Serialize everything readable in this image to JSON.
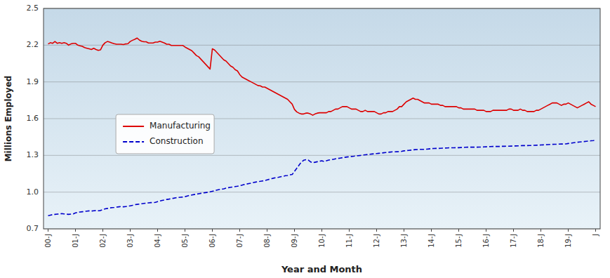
{
  "chart_data": {
    "type": "line",
    "xlabel": "Year and Month",
    "ylabel": "Millions Employed",
    "ylim": [
      0.7,
      2.5
    ],
    "yticks": [
      0.7,
      {
        "value": 1.0,
        "label": "1.0"
      },
      1.3,
      1.6,
      1.9,
      2.2,
      2.5
    ],
    "grid": true,
    "legend": "left",
    "categories": [
      "00-J",
      null,
      null,
      null,
      null,
      null,
      null,
      null,
      null,
      null,
      null,
      null,
      "01-J",
      null,
      null,
      null,
      null,
      null,
      null,
      null,
      null,
      null,
      null,
      null,
      "02-J",
      null,
      null,
      null,
      null,
      null,
      null,
      null,
      null,
      null,
      null,
      null,
      "03-J",
      null,
      null,
      null,
      null,
      null,
      null,
      null,
      null,
      null,
      null,
      null,
      "04-J",
      null,
      null,
      null,
      null,
      null,
      null,
      null,
      null,
      null,
      null,
      null,
      "05-J",
      null,
      null,
      null,
      null,
      null,
      null,
      null,
      null,
      null,
      null,
      null,
      "06-J",
      null,
      null,
      null,
      null,
      null,
      null,
      null,
      null,
      null,
      null,
      null,
      "07-J",
      null,
      null,
      null,
      null,
      null,
      null,
      null,
      null,
      null,
      null,
      null,
      "08-J",
      null,
      null,
      null,
      null,
      null,
      null,
      null,
      null,
      null,
      null,
      null,
      "09-J",
      null,
      null,
      null,
      null,
      null,
      null,
      null,
      null,
      null,
      null,
      null,
      "10-J",
      null,
      null,
      null,
      null,
      null,
      null,
      null,
      null,
      null,
      null,
      null,
      "11-J",
      null,
      null,
      null,
      null,
      null,
      null,
      null,
      null,
      null,
      null,
      null,
      "12-J",
      null,
      null,
      null,
      null,
      null,
      null,
      null,
      null,
      null,
      null,
      null,
      "13-J",
      null,
      null,
      null,
      null,
      null,
      null,
      null,
      null,
      null,
      null,
      null,
      "14-J",
      null,
      null,
      null,
      null,
      null,
      null,
      null,
      null,
      null,
      null,
      null,
      "15-J",
      null,
      null,
      null,
      null,
      null,
      null,
      null,
      null,
      null,
      null,
      null,
      "16-J",
      null,
      null,
      null,
      null,
      null,
      null,
      null,
      null,
      null,
      null,
      null,
      "17-J",
      null,
      null,
      null,
      null,
      null,
      null,
      null,
      null,
      null,
      null,
      null,
      "18-J",
      null,
      null,
      null,
      null,
      null,
      null,
      null,
      null,
      null,
      null,
      null,
      "19-J",
      null,
      null,
      null,
      null,
      null,
      null,
      null,
      null,
      null,
      null,
      null,
      "J"
    ],
    "series": [
      {
        "name": "Manufacturing",
        "color": "#dd0000",
        "line_style": "solid",
        "values": [
          2.21,
          2.22,
          2.215,
          2.23,
          2.215,
          2.22,
          2.215,
          2.22,
          2.215,
          2.2,
          2.21,
          2.215,
          2.215,
          2.2,
          2.195,
          2.19,
          2.18,
          2.175,
          2.17,
          2.165,
          2.175,
          2.165,
          2.158,
          2.162,
          2.2,
          2.22,
          2.23,
          2.225,
          2.218,
          2.212,
          2.208,
          2.208,
          2.208,
          2.205,
          2.21,
          2.212,
          2.23,
          2.24,
          2.248,
          2.258,
          2.242,
          2.232,
          2.228,
          2.228,
          2.218,
          2.218,
          2.218,
          2.225,
          2.225,
          2.232,
          2.225,
          2.218,
          2.208,
          2.208,
          2.198,
          2.198,
          2.198,
          2.198,
          2.198,
          2.198,
          2.185,
          2.175,
          2.165,
          2.155,
          2.135,
          2.115,
          2.105,
          2.085,
          2.065,
          2.045,
          2.025,
          2.005,
          2.17,
          2.16,
          2.14,
          2.12,
          2.1,
          2.08,
          2.07,
          2.05,
          2.03,
          2.02,
          2.0,
          1.99,
          1.96,
          1.94,
          1.93,
          1.92,
          1.91,
          1.9,
          1.89,
          1.88,
          1.87,
          1.868,
          1.858,
          1.858,
          1.848,
          1.838,
          1.828,
          1.818,
          1.808,
          1.798,
          1.788,
          1.778,
          1.768,
          1.758,
          1.738,
          1.718,
          1.675,
          1.655,
          1.645,
          1.638,
          1.638,
          1.645,
          1.645,
          1.638,
          1.628,
          1.638,
          1.645,
          1.648,
          1.648,
          1.648,
          1.648,
          1.658,
          1.658,
          1.668,
          1.678,
          1.678,
          1.688,
          1.698,
          1.698,
          1.698,
          1.688,
          1.678,
          1.678,
          1.678,
          1.668,
          1.658,
          1.658,
          1.668,
          1.658,
          1.658,
          1.658,
          1.658,
          1.648,
          1.638,
          1.638,
          1.648,
          1.648,
          1.658,
          1.658,
          1.658,
          1.668,
          1.678,
          1.698,
          1.698,
          1.718,
          1.738,
          1.748,
          1.758,
          1.768,
          1.758,
          1.758,
          1.748,
          1.738,
          1.728,
          1.728,
          1.728,
          1.718,
          1.718,
          1.718,
          1.718,
          1.708,
          1.708,
          1.698,
          1.698,
          1.698,
          1.698,
          1.698,
          1.698,
          1.688,
          1.688,
          1.678,
          1.678,
          1.678,
          1.678,
          1.678,
          1.678,
          1.668,
          1.668,
          1.668,
          1.668,
          1.658,
          1.658,
          1.658,
          1.668,
          1.668,
          1.668,
          1.668,
          1.668,
          1.668,
          1.668,
          1.678,
          1.678,
          1.668,
          1.668,
          1.668,
          1.678,
          1.668,
          1.668,
          1.658,
          1.658,
          1.658,
          1.658,
          1.668,
          1.668,
          1.678,
          1.688,
          1.698,
          1.708,
          1.718,
          1.728,
          1.728,
          1.728,
          1.718,
          1.708,
          1.718,
          1.718,
          1.728,
          1.718,
          1.708,
          1.698,
          1.688,
          1.698,
          1.708,
          1.718,
          1.728,
          1.738,
          1.718,
          1.708,
          1.698
        ]
      },
      {
        "name": "Construction",
        "color": "#0000cc",
        "line_style": "dashed",
        "values": [
          0.808,
          0.812,
          0.816,
          0.818,
          0.82,
          0.822,
          0.825,
          0.822,
          0.82,
          0.818,
          0.82,
          0.822,
          0.83,
          0.835,
          0.838,
          0.84,
          0.842,
          0.845,
          0.847,
          0.845,
          0.848,
          0.85,
          0.848,
          0.85,
          0.858,
          0.863,
          0.867,
          0.871,
          0.873,
          0.875,
          0.878,
          0.88,
          0.882,
          0.88,
          0.882,
          0.884,
          0.888,
          0.892,
          0.897,
          0.9,
          0.902,
          0.905,
          0.908,
          0.91,
          0.912,
          0.914,
          0.914,
          0.916,
          0.922,
          0.927,
          0.932,
          0.936,
          0.94,
          0.943,
          0.947,
          0.95,
          0.954,
          0.956,
          0.958,
          0.96,
          0.963,
          0.968,
          0.973,
          0.977,
          0.98,
          0.983,
          0.987,
          0.99,
          0.993,
          0.996,
          0.999,
          1.002,
          1.007,
          1.012,
          1.017,
          1.021,
          1.024,
          1.027,
          1.032,
          1.036,
          1.04,
          1.042,
          1.045,
          1.048,
          1.052,
          1.057,
          1.062,
          1.066,
          1.07,
          1.073,
          1.078,
          1.082,
          1.086,
          1.088,
          1.091,
          1.094,
          1.1,
          1.105,
          1.11,
          1.115,
          1.118,
          1.121,
          1.126,
          1.129,
          1.134,
          1.136,
          1.141,
          1.144,
          1.17,
          1.195,
          1.22,
          1.245,
          1.26,
          1.265,
          1.262,
          1.248,
          1.24,
          1.244,
          1.248,
          1.252,
          1.256,
          1.25,
          1.256,
          1.262,
          1.264,
          1.268,
          1.272,
          1.275,
          1.278,
          1.281,
          1.284,
          1.287,
          1.289,
          1.291,
          1.293,
          1.296,
          1.298,
          1.3,
          1.303,
          1.305,
          1.307,
          1.309,
          1.311,
          1.313,
          1.315,
          1.317,
          1.319,
          1.321,
          1.323,
          1.325,
          1.327,
          1.329,
          1.329,
          1.33,
          1.331,
          1.333,
          1.337,
          1.339,
          1.341,
          1.343,
          1.345,
          1.347,
          1.348,
          1.349,
          1.349,
          1.349,
          1.351,
          1.353,
          1.355,
          1.356,
          1.357,
          1.357,
          1.358,
          1.359,
          1.36,
          1.361,
          1.362,
          1.362,
          1.362,
          1.363,
          1.363,
          1.364,
          1.365,
          1.366,
          1.367,
          1.367,
          1.367,
          1.367,
          1.367,
          1.368,
          1.368,
          1.369,
          1.37,
          1.371,
          1.372,
          1.373,
          1.373,
          1.373,
          1.373,
          1.374,
          1.374,
          1.375,
          1.375,
          1.376,
          1.377,
          1.377,
          1.378,
          1.379,
          1.38,
          1.38,
          1.38,
          1.381,
          1.381,
          1.382,
          1.383,
          1.384,
          1.385,
          1.386,
          1.387,
          1.388,
          1.389,
          1.39,
          1.391,
          1.391,
          1.392,
          1.393,
          1.393,
          1.394,
          1.397,
          1.399,
          1.402,
          1.405,
          1.407,
          1.409,
          1.411,
          1.413,
          1.415,
          1.417,
          1.419,
          1.421,
          1.424
        ]
      }
    ]
  }
}
